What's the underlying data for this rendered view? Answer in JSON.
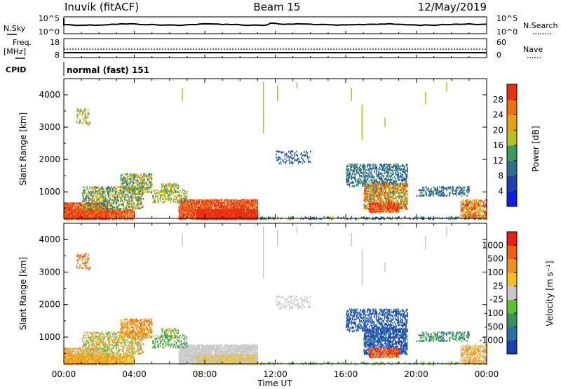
{
  "header": {
    "station": "Inuvik (fitACF)",
    "beam": "Beam 15",
    "date": "12/May/2019"
  },
  "top_panels": {
    "nsky_label": "N.Sky",
    "nsky_ticks": [
      "10^5",
      "10^0"
    ],
    "nsearch_label": "N.Search",
    "nsearch_ticks": [
      "10^5",
      "10^0"
    ],
    "freq_label_1": "Freq.",
    "freq_label_2": "[MHz]",
    "freq_ticks": [
      "18",
      "8"
    ],
    "nave_label": "Nave",
    "nave_ticks": [
      "60",
      "0"
    ],
    "cpid_label": "CPID",
    "cpid_text": "normal (fast) 151"
  },
  "chart_data": [
    {
      "type": "heatmap",
      "name": "power",
      "ylabel": "Slant Range [km]",
      "ylim": [
        180,
        4500
      ],
      "yticks": [
        "4000",
        "3000",
        "2000",
        "1000"
      ],
      "x": [
        "00:00",
        "04:00",
        "08:00",
        "12:00",
        "16:00",
        "20:00",
        "00:00"
      ],
      "colorbar": {
        "label": "Power [dB]",
        "ticks": [
          "28",
          "24",
          "20",
          "16",
          "12",
          "8",
          "4"
        ],
        "colors": [
          "#1020e0",
          "#1e40b0",
          "#2e6f8e",
          "#3c9a5a",
          "#b8c020",
          "#e8a010",
          "#f07010",
          "#e83010"
        ]
      }
    },
    {
      "type": "heatmap",
      "name": "velocity",
      "ylabel": "Slant Range [km]",
      "ylim": [
        180,
        4500
      ],
      "yticks": [
        "4000",
        "3000",
        "2000",
        "1000"
      ],
      "x": [
        "00:00",
        "04:00",
        "08:00",
        "12:00",
        "16:00",
        "20:00",
        "00:00"
      ],
      "xlabel": "Time UT",
      "colorbar": {
        "label": "Velocity [m s⁻¹]",
        "ticks": [
          "1000",
          "500",
          "100",
          "25",
          "-25",
          "-100",
          "-500",
          "-1000"
        ],
        "colors": [
          "#1a3fb0",
          "#2b6fa8",
          "#3b8f5e",
          "#5cc030",
          "#c8c8c8",
          "#f0c020",
          "#f09020",
          "#f06010",
          "#e82010"
        ]
      }
    }
  ]
}
